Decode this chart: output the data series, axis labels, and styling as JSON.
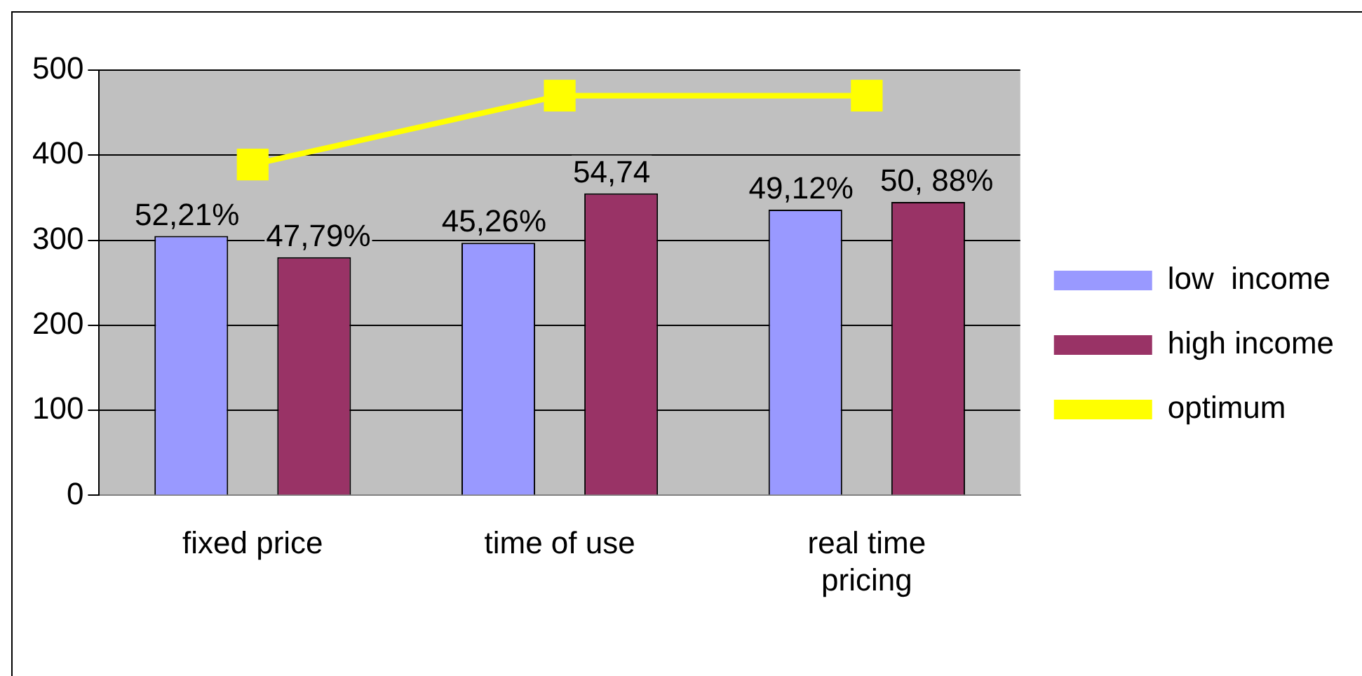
{
  "chart_data": {
    "type": "bar",
    "categories": [
      "fixed price",
      "time of use",
      "real time pricing"
    ],
    "series": [
      {
        "name": "low  income",
        "color": "#9999ff",
        "values": [
          305,
          297,
          336
        ]
      },
      {
        "name": "high income",
        "color": "#993366",
        "values": [
          280,
          355,
          345
        ]
      },
      {
        "name": "optimum",
        "type": "line",
        "color": "#ffff00",
        "values": [
          389,
          470,
          470
        ],
        "marker": "square"
      }
    ],
    "annotations": [
      "52,21%",
      "47,79%",
      "45,26%",
      "54,74",
      "49,12%",
      "50, 88%"
    ],
    "ylim": [
      0,
      500
    ],
    "yticks": [
      0,
      100,
      200,
      300,
      400,
      500
    ],
    "grid": "y",
    "legend": "right"
  }
}
